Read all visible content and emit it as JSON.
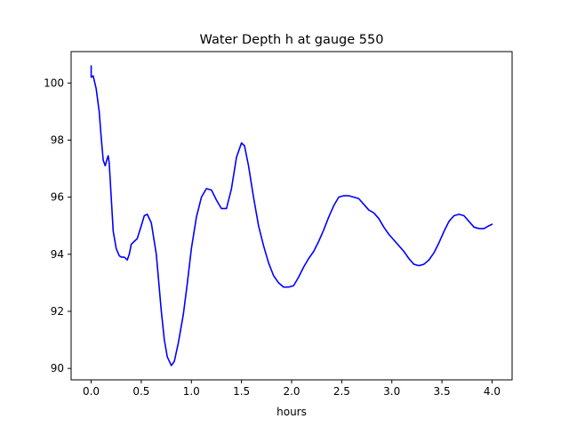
{
  "chart_data": {
    "type": "line",
    "title": "Water Depth h at gauge 550",
    "xlabel": "hours",
    "ylabel": "",
    "xlim": [
      -0.2,
      4.2
    ],
    "ylim": [
      89.6,
      101.1
    ],
    "x_ticks": [
      "0.0",
      "0.5",
      "1.0",
      "1.5",
      "2.0",
      "2.5",
      "3.0",
      "3.5",
      "4.0"
    ],
    "y_ticks": [
      "90",
      "92",
      "94",
      "96",
      "98",
      "100"
    ],
    "grid": false,
    "legend": "none",
    "series": [
      {
        "color": "#0000ff",
        "points": [
          [
            0.0,
            100.6
          ],
          [
            0.0,
            100.2
          ],
          [
            0.02,
            100.25
          ],
          [
            0.05,
            99.8
          ],
          [
            0.08,
            99.0
          ],
          [
            0.1,
            98.1
          ],
          [
            0.12,
            97.3
          ],
          [
            0.14,
            97.1
          ],
          [
            0.16,
            97.35
          ],
          [
            0.17,
            97.45
          ],
          [
            0.18,
            97.2
          ],
          [
            0.2,
            96.0
          ],
          [
            0.22,
            94.8
          ],
          [
            0.25,
            94.2
          ],
          [
            0.28,
            93.95
          ],
          [
            0.3,
            93.9
          ],
          [
            0.33,
            93.9
          ],
          [
            0.36,
            93.8
          ],
          [
            0.38,
            94.0
          ],
          [
            0.4,
            94.35
          ],
          [
            0.43,
            94.45
          ],
          [
            0.46,
            94.55
          ],
          [
            0.5,
            95.0
          ],
          [
            0.53,
            95.35
          ],
          [
            0.56,
            95.4
          ],
          [
            0.6,
            95.1
          ],
          [
            0.65,
            94.0
          ],
          [
            0.7,
            92.0
          ],
          [
            0.73,
            91.0
          ],
          [
            0.76,
            90.4
          ],
          [
            0.8,
            90.1
          ],
          [
            0.83,
            90.25
          ],
          [
            0.87,
            90.9
          ],
          [
            0.92,
            91.9
          ],
          [
            0.96,
            93.0
          ],
          [
            1.0,
            94.2
          ],
          [
            1.05,
            95.3
          ],
          [
            1.1,
            96.0
          ],
          [
            1.15,
            96.3
          ],
          [
            1.2,
            96.25
          ],
          [
            1.25,
            95.9
          ],
          [
            1.3,
            95.6
          ],
          [
            1.35,
            95.6
          ],
          [
            1.4,
            96.3
          ],
          [
            1.45,
            97.4
          ],
          [
            1.5,
            97.9
          ],
          [
            1.53,
            97.8
          ],
          [
            1.57,
            97.1
          ],
          [
            1.62,
            96.0
          ],
          [
            1.67,
            95.0
          ],
          [
            1.72,
            94.3
          ],
          [
            1.77,
            93.7
          ],
          [
            1.82,
            93.25
          ],
          [
            1.87,
            93.0
          ],
          [
            1.92,
            92.85
          ],
          [
            1.97,
            92.85
          ],
          [
            2.02,
            92.9
          ],
          [
            2.07,
            93.2
          ],
          [
            2.12,
            93.55
          ],
          [
            2.17,
            93.85
          ],
          [
            2.22,
            94.1
          ],
          [
            2.27,
            94.45
          ],
          [
            2.32,
            94.85
          ],
          [
            2.37,
            95.3
          ],
          [
            2.42,
            95.7
          ],
          [
            2.47,
            96.0
          ],
          [
            2.52,
            96.05
          ],
          [
            2.57,
            96.05
          ],
          [
            2.62,
            96.0
          ],
          [
            2.67,
            95.95
          ],
          [
            2.72,
            95.75
          ],
          [
            2.77,
            95.55
          ],
          [
            2.82,
            95.45
          ],
          [
            2.87,
            95.25
          ],
          [
            2.92,
            94.95
          ],
          [
            2.97,
            94.7
          ],
          [
            3.02,
            94.5
          ],
          [
            3.07,
            94.3
          ],
          [
            3.12,
            94.1
          ],
          [
            3.17,
            93.85
          ],
          [
            3.22,
            93.65
          ],
          [
            3.27,
            93.6
          ],
          [
            3.32,
            93.65
          ],
          [
            3.37,
            93.8
          ],
          [
            3.42,
            94.05
          ],
          [
            3.47,
            94.4
          ],
          [
            3.52,
            94.8
          ],
          [
            3.57,
            95.15
          ],
          [
            3.62,
            95.35
          ],
          [
            3.67,
            95.4
          ],
          [
            3.72,
            95.35
          ],
          [
            3.77,
            95.15
          ],
          [
            3.82,
            94.95
          ],
          [
            3.87,
            94.9
          ],
          [
            3.92,
            94.9
          ],
          [
            3.97,
            95.0
          ],
          [
            4.0,
            95.05
          ]
        ]
      }
    ]
  }
}
